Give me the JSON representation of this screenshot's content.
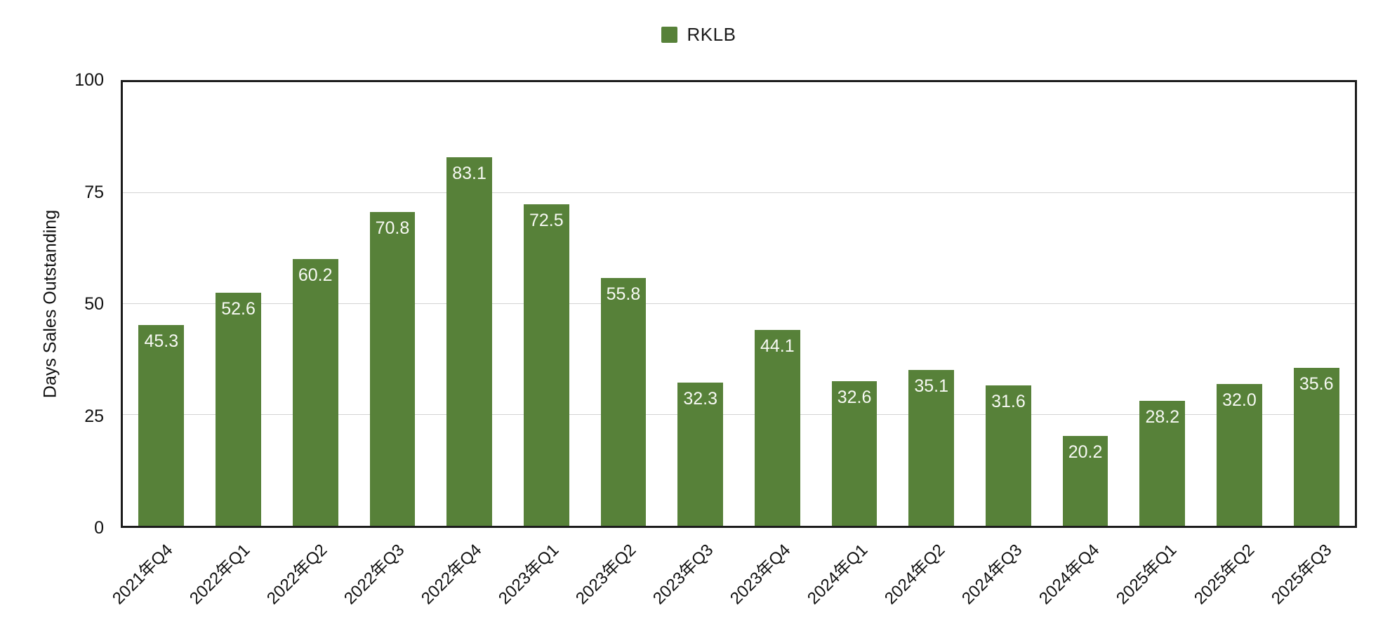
{
  "legend": {
    "label": "RKLB",
    "swatch_color": "#578139"
  },
  "chart_data": {
    "type": "bar",
    "title": "",
    "xlabel": "",
    "ylabel": "Days Sales Outstanding",
    "categories": [
      "2021年Q4",
      "2022年Q1",
      "2022年Q2",
      "2022年Q3",
      "2022年Q4",
      "2023年Q1",
      "2023年Q2",
      "2023年Q3",
      "2023年Q4",
      "2024年Q1",
      "2024年Q2",
      "2024年Q3",
      "2024年Q4",
      "2025年Q1",
      "2025年Q2",
      "2025年Q3"
    ],
    "values": [
      45.3,
      52.6,
      60.2,
      70.8,
      83.1,
      72.5,
      55.8,
      32.3,
      44.1,
      32.6,
      35.1,
      31.6,
      20.2,
      28.2,
      32.0,
      35.6
    ],
    "value_labels": [
      "45.3",
      "52.6",
      "60.2",
      "70.8",
      "83.1",
      "72.5",
      "55.8",
      "32.3",
      "44.1",
      "32.6",
      "35.1",
      "31.6",
      "20.2",
      "28.2",
      "32.0",
      "35.6"
    ],
    "series_name": "RKLB",
    "ylim": [
      0,
      100
    ],
    "yticks": [
      0,
      25,
      50,
      75,
      100
    ],
    "ytick_labels": [
      "0",
      "25",
      "50",
      "75",
      "100"
    ],
    "grid": true,
    "legend_position": "top-center",
    "bar_color": "#578139",
    "value_label_color": "#f7f9f3",
    "axis_color": "#1c1c1c",
    "gridline_color": "#d4d4d4"
  }
}
